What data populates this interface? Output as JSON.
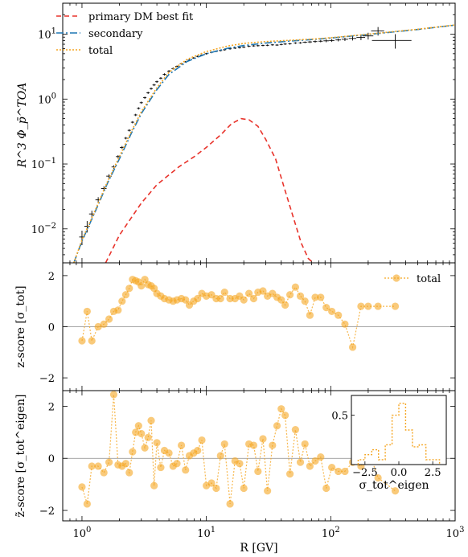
{
  "chart_data": [
    {
      "type": "line",
      "xscale": "log",
      "yscale": "log",
      "xlim": [
        0.7,
        1000
      ],
      "ylim": [
        0.003,
        30
      ],
      "ylabel": "R^3 Φ_p̄^TOA",
      "xlabel": "",
      "yticks": [
        {
          "value": 0.01,
          "label": "10^-2"
        },
        {
          "value": 0.1,
          "label": "10^-1"
        },
        {
          "value": 1,
          "label": "10^0"
        },
        {
          "value": 10,
          "label": "10^1"
        }
      ],
      "legend_position": "top-left",
      "series": [
        {
          "name": "primary DM best fit",
          "color": "#e8332b",
          "dash": "6,4",
          "x": [
            1.55,
            2,
            3,
            4,
            6,
            8,
            10,
            13,
            16,
            19,
            22,
            26,
            30,
            36,
            42,
            50,
            58,
            66,
            72
          ],
          "y": [
            0.003,
            0.008,
            0.025,
            0.048,
            0.09,
            0.13,
            0.18,
            0.28,
            0.42,
            0.5,
            0.48,
            0.38,
            0.24,
            0.12,
            0.045,
            0.015,
            0.006,
            0.0035,
            0.003
          ]
        },
        {
          "name": "secondary",
          "color": "#1f77b4",
          "dash": "9,3,2,3",
          "x": [
            0.86,
            1,
            1.3,
            1.6,
            2,
            2.5,
            3,
            4,
            5,
            7,
            10,
            15,
            20,
            30,
            50,
            80,
            120,
            200,
            300,
            500,
            1000
          ],
          "y": [
            0.003,
            0.0065,
            0.02,
            0.05,
            0.12,
            0.3,
            0.6,
            1.4,
            2.4,
            3.8,
            5.0,
            6.1,
            6.7,
            7.3,
            7.9,
            8.4,
            9.0,
            9.9,
            10.7,
            11.8,
            13.8
          ]
        },
        {
          "name": "total",
          "color": "#f5a623",
          "dash": "2,2",
          "x": [
            0.86,
            1,
            1.3,
            1.6,
            2,
            2.5,
            3,
            4,
            5,
            7,
            10,
            15,
            20,
            30,
            50,
            80,
            120,
            200,
            300,
            500,
            1000
          ],
          "y": [
            0.003,
            0.0068,
            0.021,
            0.053,
            0.13,
            0.32,
            0.64,
            1.5,
            2.6,
            4.1,
            5.4,
            6.6,
            7.2,
            7.7,
            8.1,
            8.5,
            9.1,
            10.0,
            10.8,
            11.9,
            13.9
          ]
        }
      ],
      "measurements": {
        "x": [
          1.0,
          1.1,
          1.2,
          1.35,
          1.5,
          1.65,
          1.8,
          1.95,
          2.1,
          2.25,
          2.4,
          2.55,
          2.7,
          2.85,
          3.0,
          3.2,
          3.4,
          3.6,
          3.8,
          4.0,
          4.3,
          4.6,
          5.0,
          5.4,
          5.8,
          6.3,
          6.8,
          7.3,
          7.9,
          8.5,
          9.2,
          10,
          11,
          12,
          13,
          14,
          15.5,
          17,
          18.5,
          20,
          22,
          24,
          26,
          28.5,
          31,
          34,
          37,
          40,
          43,
          47,
          52,
          57,
          62,
          68,
          75,
          83,
          92,
          102,
          115,
          130,
          150,
          175,
          200,
          240,
          330
        ],
        "y": [
          0.0075,
          0.011,
          0.017,
          0.028,
          0.042,
          0.065,
          0.09,
          0.13,
          0.18,
          0.25,
          0.33,
          0.44,
          0.57,
          0.72,
          0.88,
          1.05,
          1.25,
          1.45,
          1.65,
          1.85,
          2.1,
          2.4,
          2.7,
          2.95,
          3.2,
          3.5,
          3.75,
          4.0,
          4.3,
          4.55,
          4.75,
          5.0,
          5.25,
          5.45,
          5.6,
          5.75,
          5.95,
          6.1,
          6.2,
          6.3,
          6.5,
          6.6,
          6.65,
          6.7,
          6.75,
          6.85,
          6.8,
          6.95,
          7.05,
          7.1,
          7.3,
          7.35,
          7.5,
          7.6,
          7.7,
          7.8,
          7.9,
          8.0,
          8.15,
          8.35,
          8.6,
          8.9,
          9.4,
          11.2,
          8.0
        ],
        "xerr_rel": [
          0.05,
          0.05,
          0.05,
          0.05,
          0.05,
          0.05,
          0.04,
          0.04,
          0.04,
          0.03,
          0.03,
          0.03,
          0.03,
          0.03,
          0.03,
          0.03,
          0.03,
          0.03,
          0.03,
          0.03,
          0.03,
          0.03,
          0.03,
          0.03,
          0.03,
          0.03,
          0.03,
          0.03,
          0.03,
          0.03,
          0.03,
          0.03,
          0.03,
          0.03,
          0.03,
          0.03,
          0.03,
          0.03,
          0.03,
          0.03,
          0.03,
          0.03,
          0.03,
          0.03,
          0.03,
          0.03,
          0.03,
          0.03,
          0.03,
          0.03,
          0.03,
          0.03,
          0.04,
          0.04,
          0.04,
          0.04,
          0.05,
          0.05,
          0.05,
          0.06,
          0.07,
          0.08,
          0.1,
          0.12,
          0.35
        ],
        "yerr_rel": [
          0.25,
          0.2,
          0.12,
          0.1,
          0.08,
          0.07,
          0.06,
          0.05,
          0.05,
          0.04,
          0.04,
          0.04,
          0.04,
          0.04,
          0.04,
          0.04,
          0.04,
          0.04,
          0.04,
          0.04,
          0.04,
          0.04,
          0.04,
          0.04,
          0.03,
          0.03,
          0.03,
          0.03,
          0.03,
          0.03,
          0.03,
          0.03,
          0.03,
          0.03,
          0.03,
          0.03,
          0.03,
          0.03,
          0.03,
          0.03,
          0.03,
          0.03,
          0.03,
          0.03,
          0.03,
          0.03,
          0.03,
          0.03,
          0.03,
          0.03,
          0.03,
          0.03,
          0.03,
          0.04,
          0.04,
          0.04,
          0.05,
          0.05,
          0.05,
          0.06,
          0.07,
          0.09,
          0.12,
          0.15,
          0.25
        ]
      }
    },
    {
      "type": "line",
      "xscale": "log",
      "xlim": [
        0.7,
        1000
      ],
      "ylim": [
        -2.5,
        2.5
      ],
      "ylabel": "z-score [σ_tot]",
      "yticks": [
        -2,
        0,
        2
      ],
      "legend_position": "top-right",
      "series": [
        {
          "name": "total",
          "color": "#f5a623",
          "x": [
            1.0,
            1.1,
            1.2,
            1.35,
            1.5,
            1.65,
            1.8,
            1.95,
            2.1,
            2.25,
            2.4,
            2.55,
            2.7,
            2.85,
            3.0,
            3.2,
            3.4,
            3.6,
            3.8,
            4.0,
            4.3,
            4.6,
            5.0,
            5.4,
            5.8,
            6.3,
            6.8,
            7.3,
            7.9,
            8.5,
            9.2,
            10,
            11,
            12,
            13,
            14,
            15.5,
            17,
            18.5,
            20,
            22,
            24,
            26,
            28.5,
            31,
            34,
            37,
            40,
            43,
            47,
            52,
            57,
            62,
            68,
            75,
            83,
            92,
            102,
            115,
            130,
            150,
            175,
            200,
            240,
            330
          ],
          "y": [
            -0.55,
            0.6,
            -0.55,
            0.0,
            0.1,
            0.3,
            0.6,
            0.65,
            1.0,
            1.25,
            1.5,
            1.85,
            1.8,
            1.75,
            1.6,
            1.85,
            1.65,
            1.6,
            1.5,
            1.3,
            1.2,
            1.1,
            1.05,
            1.0,
            1.05,
            1.1,
            1.05,
            0.85,
            1.0,
            1.1,
            1.3,
            1.2,
            1.25,
            1.1,
            1.1,
            1.35,
            1.1,
            1.1,
            1.2,
            1.05,
            1.3,
            1.1,
            1.35,
            1.4,
            1.2,
            1.3,
            1.15,
            1.05,
            0.85,
            1.25,
            1.55,
            1.2,
            1.0,
            0.45,
            1.15,
            1.15,
            0.75,
            0.6,
            0.45,
            0.1,
            -0.8,
            0.8,
            0.8,
            0.8,
            0.8
          ]
        }
      ]
    },
    {
      "type": "line",
      "xscale": "log",
      "xlim": [
        0.7,
        1000
      ],
      "ylim": [
        -2.4,
        2.6
      ],
      "xlabel": "R [GV]",
      "ylabel": "z̃-score [σ_tot^eigen]",
      "xticks": [
        {
          "value": 1,
          "label": "10^0"
        },
        {
          "value": 10,
          "label": "10^1"
        },
        {
          "value": 100,
          "label": "10^2"
        },
        {
          "value": 1000,
          "label": "10^3"
        }
      ],
      "yticks": [
        -2,
        0,
        2
      ],
      "series": [
        {
          "name": "",
          "color": "#f5a623",
          "x": [
            1.0,
            1.1,
            1.2,
            1.35,
            1.5,
            1.65,
            1.8,
            1.95,
            2.1,
            2.25,
            2.4,
            2.55,
            2.7,
            2.85,
            3.0,
            3.2,
            3.4,
            3.6,
            3.8,
            4.0,
            4.3,
            4.6,
            5.0,
            5.4,
            5.8,
            6.3,
            6.8,
            7.3,
            7.9,
            8.5,
            9.2,
            10,
            11,
            12,
            13,
            14,
            15.5,
            17,
            18.5,
            20,
            22,
            24,
            26,
            28.5,
            31,
            34,
            37,
            40,
            43,
            47,
            52,
            57,
            62,
            68,
            75,
            83,
            92,
            102,
            115,
            130,
            150,
            175,
            200,
            240,
            330
          ],
          "y": [
            -1.1,
            -1.75,
            -0.3,
            -0.3,
            -0.55,
            -0.15,
            2.45,
            -0.25,
            -0.3,
            -0.2,
            -0.55,
            0.25,
            1.0,
            1.25,
            0.95,
            0.4,
            0.8,
            1.45,
            -1.05,
            0.6,
            -0.35,
            0.3,
            0.2,
            -0.3,
            -0.2,
            0.5,
            -0.45,
            0.1,
            0.2,
            0.3,
            0.7,
            -1.05,
            -0.95,
            -1.15,
            0.1,
            0.55,
            -1.75,
            -0.1,
            -0.2,
            -1.15,
            0.55,
            0.5,
            -0.5,
            0.75,
            -1.25,
            0.5,
            1.25,
            1.9,
            1.65,
            -0.6,
            1.1,
            -0.15,
            0.55,
            -0.3,
            -0.1,
            0.05,
            -1.15,
            -0.35,
            -0.5,
            -0.5,
            -0.15,
            -0.3,
            0.35,
            -0.75,
            -1.25
          ]
        }
      ]
    },
    {
      "type": "histogram",
      "xlim": [
        -3.5,
        3.5
      ],
      "ylim": [
        0,
        0.7
      ],
      "xlabel": "σ_tot^eigen",
      "xticks": [
        -2.5,
        0.0,
        2.5
      ],
      "yticks": [
        0.5
      ],
      "edges": [
        -3,
        -2.5,
        -2,
        -1.5,
        -1,
        -0.5,
        0,
        0.5,
        1,
        1.5,
        2,
        2.5,
        3
      ],
      "values": [
        0.05,
        0.1,
        0.15,
        0.05,
        0.2,
        0.5,
        0.62,
        0.35,
        0.18,
        0.2,
        0.05,
        0.05
      ],
      "color": "#f5a623"
    }
  ]
}
